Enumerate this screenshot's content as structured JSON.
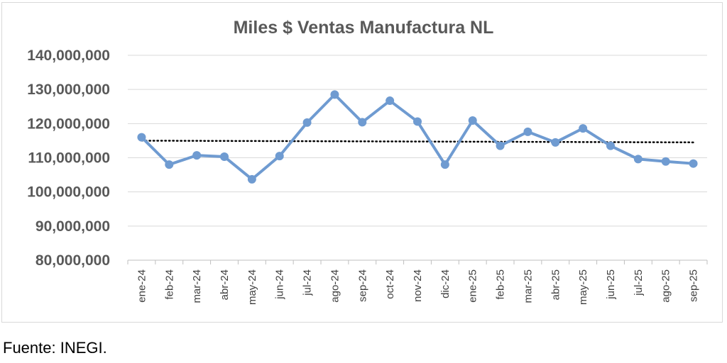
{
  "chart_data": {
    "type": "line",
    "title": "Miles $ Ventas Manufactura NL",
    "xlabel": "",
    "ylabel": "",
    "categories": [
      "ene-24",
      "feb-24",
      "mar-24",
      "abr-24",
      "may-24",
      "jun-24",
      "jul-24",
      "ago-24",
      "sep-24",
      "oct-24",
      "nov-24",
      "dic-24",
      "ene-25",
      "feb-25",
      "mar-25",
      "abr-25",
      "may-25",
      "jun-25",
      "jul-25",
      "ago-25",
      "sep-25"
    ],
    "series": [
      {
        "values": [
          116000000,
          108000000,
          110700000,
          110300000,
          103700000,
          110500000,
          120300000,
          128500000,
          120400000,
          126700000,
          120600000,
          108000000,
          120900000,
          113500000,
          117600000,
          114500000,
          118600000,
          113500000,
          109600000,
          108900000,
          108300000
        ],
        "color": "#6f9bd1",
        "marker": "circle"
      }
    ],
    "trendline": {
      "type": "linear",
      "style": "dotted",
      "color": "#000000",
      "start": 115000000,
      "end": 114500000
    },
    "ylim": [
      80000000,
      140000000
    ],
    "yticks": [
      {
        "value": 80000000,
        "label": "80,000,000"
      },
      {
        "value": 90000000,
        "label": "90,000,000"
      },
      {
        "value": 100000000,
        "label": "100,000,000"
      },
      {
        "value": 110000000,
        "label": "110,000,000"
      },
      {
        "value": 120000000,
        "label": "120,000,000"
      },
      {
        "value": 130000000,
        "label": "130,000,000"
      },
      {
        "value": 140000000,
        "label": "140,000,000"
      }
    ],
    "grid": true,
    "legend": "none"
  },
  "source_note": "Fuente: INEGI."
}
